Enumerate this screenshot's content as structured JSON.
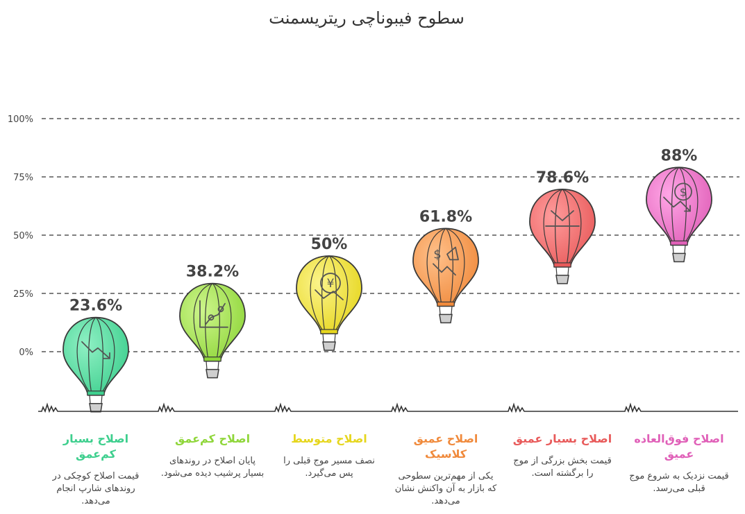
{
  "chart_data": {
    "type": "bar",
    "title": "سطوح فیبوناچی ریتریسمنت",
    "yticks": [
      "0%",
      "25%",
      "50%",
      "75%",
      "100%"
    ],
    "ylim": [
      0,
      100
    ],
    "grid": "horizontal dashed",
    "categories": [
      "اصلاح بسیار کم‌عمق",
      "اصلاح کم‌عمق",
      "اصلاح متوسط",
      "اصلاح عمیق کلاسیک",
      "اصلاح بسیار عمیق",
      "اصلاح فوق‌العاده عمیق"
    ],
    "values": [
      23.6,
      38.2,
      50,
      61.8,
      78.6,
      88
    ],
    "value_labels": [
      "23.6%",
      "38.2%",
      "50%",
      "61.8%",
      "78.6%",
      "88%"
    ]
  },
  "levels": [
    {
      "title": "اصلاح بسیار کم‌عمق",
      "desc": "قیمت اصلاح کوچکی در روندهای شارپ انجام می‌دهد.",
      "color": "#3ecf8e",
      "color_light": "#8ff0c4",
      "icon": "chart-down-arrow-icon"
    },
    {
      "title": "اصلاح کم‌عمق",
      "desc": "پایان اصلاح در روندهای بسیار پرشیب دیده می‌شود.",
      "color": "#8fd63a",
      "color_light": "#cdf58c",
      "icon": "line-chart-up-icon"
    },
    {
      "title": "اصلاح متوسط",
      "desc": "نصف مسیر موج قبلی را پس می‌گیرد.",
      "color": "#e6d61e",
      "color_light": "#fbf38a",
      "icon": "yen-down-icon"
    },
    {
      "title": "اصلاح عمیق کلاسیک",
      "desc": "یکی از مهم‌ترین سطوحی که بازار به آن واکنش نشان می‌دهد.",
      "color": "#f08a3c",
      "color_light": "#ffc08a",
      "icon": "dollar-megaphone-icon"
    },
    {
      "title": "اصلاح بسیار عمیق",
      "desc": "قیمت بخش بزرگی از موج را برگشته است.",
      "color": "#e85a5a",
      "color_light": "#ff9c9c",
      "icon": "chevron-down-line-icon"
    },
    {
      "title": "اصلاح فوق‌العاده عمیق",
      "desc": "قیمت نزدیک به شروع موج قبلی می‌رسد.",
      "color": "#e060b8",
      "color_light": "#ffa6e6",
      "icon": "dollar-down-icon"
    }
  ]
}
